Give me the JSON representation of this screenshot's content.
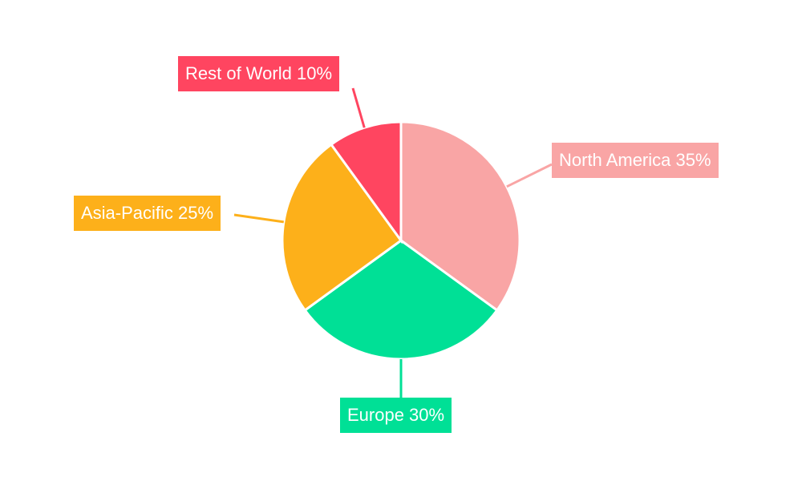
{
  "chart_data": {
    "type": "pie",
    "title": "",
    "start_angle": "top",
    "direction": "clockwise",
    "slices": [
      {
        "label": "North America",
        "value": 35,
        "display": "North America 35%",
        "color": "#F9A5A5"
      },
      {
        "label": "Europe",
        "value": 30,
        "display": "Europe 30%",
        "color": "#00E096"
      },
      {
        "label": "Asia-Pacific",
        "value": 25,
        "display": "Asia-Pacific 25%",
        "color": "#FDB01A"
      },
      {
        "label": "Rest of World",
        "value": 10,
        "display": "Rest of World 10%",
        "color": "#FF4560"
      }
    ]
  }
}
